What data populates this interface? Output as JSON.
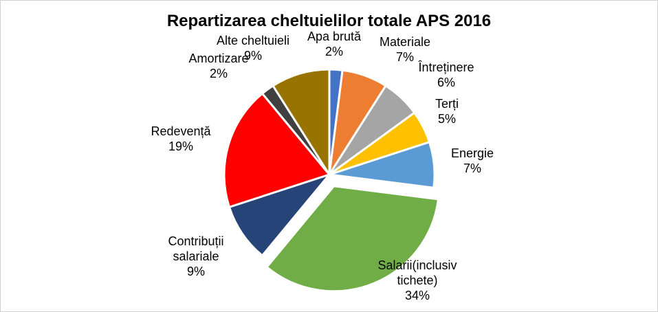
{
  "chart_data": {
    "type": "pie",
    "title": "Repartizarea cheltuielilor totale APS 2016",
    "slices": [
      {
        "label": [
          "Apa brută"
        ],
        "pct_label": "2%",
        "value": 2,
        "color": "#4472C4"
      },
      {
        "label": [
          "Materiale"
        ],
        "pct_label": "7%",
        "value": 7,
        "color": "#ED7D31"
      },
      {
        "label": [
          "Întreținere"
        ],
        "pct_label": "6%",
        "value": 6,
        "color": "#A5A5A5"
      },
      {
        "label": [
          "Terți"
        ],
        "pct_label": "5%",
        "value": 5,
        "color": "#FFC000"
      },
      {
        "label": [
          "Energie"
        ],
        "pct_label": "7%",
        "value": 7,
        "color": "#5B9BD5"
      },
      {
        "label": [
          "Salarii(inclusiv",
          "tichete)"
        ],
        "pct_label": "34%",
        "value": 34,
        "color": "#70AD47",
        "exploded": true
      },
      {
        "label": [
          "Contribuții",
          "salariale"
        ],
        "pct_label": "9%",
        "value": 9,
        "color": "#264478"
      },
      {
        "label": [
          "Redevență"
        ],
        "pct_label": "19%",
        "value": 19,
        "color": "#FF0000"
      },
      {
        "label": [
          "Amortizare"
        ],
        "pct_label": "2%",
        "value": 2,
        "color": "#404040"
      },
      {
        "label": [
          "Alte cheltuieli"
        ],
        "pct_label": "9%",
        "value": 9,
        "color": "#997300"
      }
    ]
  }
}
